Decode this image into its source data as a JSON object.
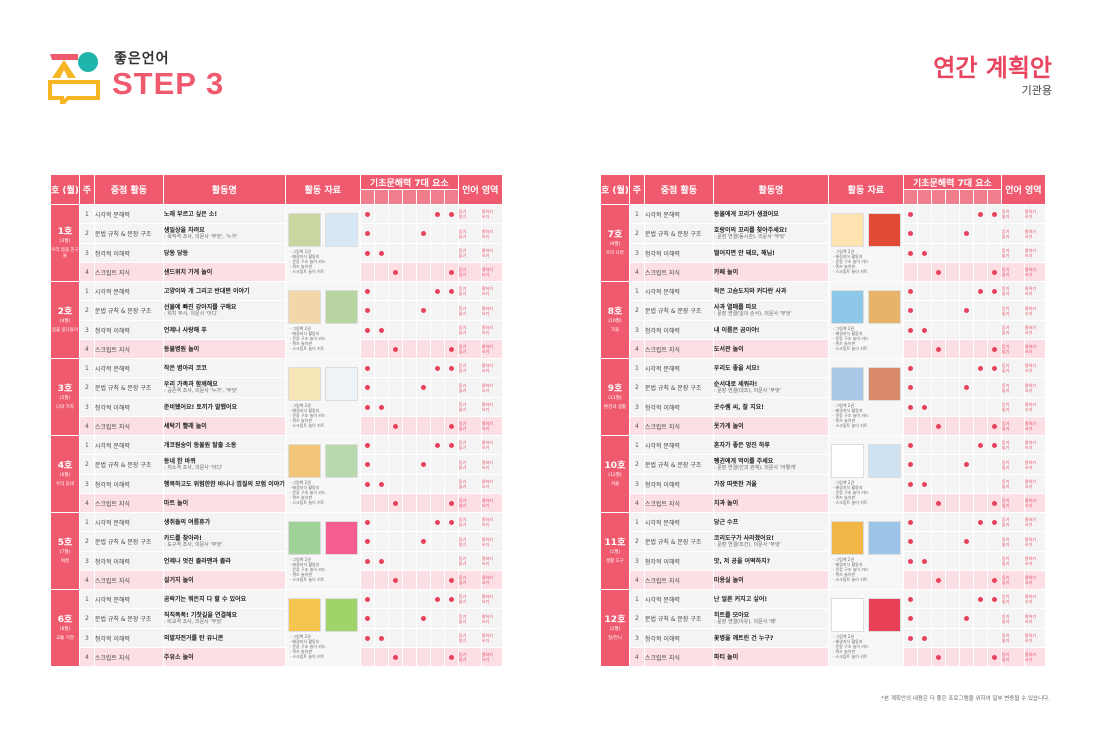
{
  "brand": "좋은언어",
  "step": "STEP 3",
  "title": "연간 계획안",
  "subtitle": "기관용",
  "colors": {
    "accent": "#ef5a6f",
    "dot": "#e8435c",
    "row_highlight": "#fbdfe4",
    "logo_yellow": "#f6b624",
    "logo_teal": "#1fb5ad"
  },
  "headers": {
    "ho": "호 (월)",
    "wk": "주",
    "activity": "중점 활동",
    "name": "활동명",
    "resources": "활동 자료",
    "basic": "기초문해력 7대 요소",
    "lang": "언어 영역"
  },
  "weekly_activities": [
    "시각적 문해력",
    "문법 규칙 & 문장 구조",
    "청각적 이해력",
    "스크립트 지식"
  ],
  "resource_list": [
    "· 그림책 2권",
    "· 배경지식 활동지",
    "· 문장 구조 놀이 카드",
    "· 퀴즈 놀이판",
    "· 스크립트 놀이 키트"
  ],
  "lang_labels": [
    "듣기",
    "말하기",
    "읽기",
    "쓰기"
  ],
  "left": [
    {
      "ho": "1호",
      "mon": "(3월)",
      "theme": "우리 몸을 친구들",
      "rows": [
        {
          "name": "노래 부르고 싶은 소!",
          "sub": ""
        },
        {
          "name": "생일상을 차려요",
          "sub": ": 목적격 조사, 의문사 '무엇', '누가'"
        },
        {
          "name": "당동 당동",
          "sub": ""
        },
        {
          "name": "샌드위치 가게 놀이",
          "sub": ""
        }
      ]
    },
    {
      "ho": "2호",
      "mon": "(4월)",
      "theme": "봄꽃 봄나들이",
      "rows": [
        {
          "name": "고양이와 개 그리고 반대편 이야기",
          "sub": ""
        },
        {
          "name": "선물에 빠진 강아지를 구해요",
          "sub": ": 위치 부사, 의문사 '어디'"
        },
        {
          "name": "언제나 사랑해 푸",
          "sub": ""
        },
        {
          "name": "동물병원 놀이",
          "sub": ""
        }
      ]
    },
    {
      "ho": "3호",
      "mon": "(5월)",
      "theme": "나와 가족",
      "rows": [
        {
          "name": "작은 병아리 코코",
          "sub": ""
        },
        {
          "name": "우리 가족과 함께해요",
          "sub": ": 공존격 조사, 의문사 '누가', '무엇'"
        },
        {
          "name": "준비됐어요! 토끼가 말했어요",
          "sub": ""
        },
        {
          "name": "세탁기 빨래 놀이",
          "sub": ""
        }
      ]
    },
    {
      "ho": "4호",
      "mon": "(6월)",
      "theme": "우리 동네",
      "rows": [
        {
          "name": "개코원숭이 동물원 탈출 소동",
          "sub": ""
        },
        {
          "name": "동네 한 바퀴",
          "sub": ": 처소격 조사, 의문사 '어디'"
        },
        {
          "name": "행복하고도 위험한한 바나나 껍질의 모험 이야기",
          "sub": ""
        },
        {
          "name": "마트 놀이",
          "sub": ""
        }
      ]
    },
    {
      "ho": "5호",
      "mon": "(7월)",
      "theme": "여름",
      "rows": [
        {
          "name": "생쥐들의 여름휴가",
          "sub": ""
        },
        {
          "name": "카드를 찾아라!",
          "sub": ": 도구격 조사, 의문사 '무엇'"
        },
        {
          "name": "언제나 멋진 졸라맨과 졸라",
          "sub": ""
        },
        {
          "name": "설거지 놀이",
          "sub": ""
        }
      ]
    },
    {
      "ho": "6호",
      "mon": "(8월)",
      "theme": "교통 기관",
      "rows": [
        {
          "name": "곰락기는 뭐든지 다 할 수 있어요",
          "sub": ""
        },
        {
          "name": "직직폭폭! 기찻길을 연결해요",
          "sub": ": 비교격 조사, 의문사 '무엇'"
        },
        {
          "name": "외발자전거를 탄 유니콘",
          "sub": ""
        },
        {
          "name": "주유소 놀이",
          "sub": ""
        }
      ]
    }
  ],
  "right": [
    {
      "ho": "7호",
      "mon": "(9월)",
      "theme": "우리 나라",
      "rows": [
        {
          "name": "동물에게 꼬리가 생겼어요",
          "sub": ""
        },
        {
          "name": "호랑이의 꼬리를 찾아주세요!",
          "sub": ": 문장 연결(동시관), 의문사 '무엇'"
        },
        {
          "name": "떨어지면 안 돼요, 해님!",
          "sub": ""
        },
        {
          "name": "카페 놀이",
          "sub": ""
        }
      ]
    },
    {
      "ho": "8호",
      "mon": "(10월)",
      "theme": "가을",
      "rows": [
        {
          "name": "작은 고슴도치와 커다란 사과",
          "sub": ""
        },
        {
          "name": "사과 열매를 따요",
          "sub": ": 문장 연결(일의 순서), 의문사 '무엇'"
        },
        {
          "name": "내 이름은 곰이야!",
          "sub": ""
        },
        {
          "name": "도서관 놀이",
          "sub": ""
        }
      ]
    },
    {
      "ho": "9호",
      "mon": "(11월)",
      "theme": "환경과 생활",
      "rows": [
        {
          "name": "우리도 좋을 서요!",
          "sub": ""
        },
        {
          "name": "순서대로 세워라!",
          "sub": ": 문장 연결(대조), 의문사 '무엇'"
        },
        {
          "name": "곳수쌤 씨, 잘 지요!",
          "sub": ""
        },
        {
          "name": "옷가게 놀이",
          "sub": ""
        }
      ]
    },
    {
      "ho": "10호",
      "mon": "(12월)",
      "theme": "겨울",
      "rows": [
        {
          "name": "혼자가 좋은 멍진 하루",
          "sub": ""
        },
        {
          "name": "펭귄에게 먹이를 주세요",
          "sub": ": 문장 연결(인과 관계), 의문사 '어떻게'"
        },
        {
          "name": "가장 따뜻한 겨울",
          "sub": ""
        },
        {
          "name": "치과 놀이",
          "sub": ""
        }
      ]
    },
    {
      "ho": "11호",
      "mon": "(1월)",
      "theme": "생활 도구",
      "rows": [
        {
          "name": "당근 수프",
          "sub": ""
        },
        {
          "name": "코리도구가 사라졌어요!",
          "sub": ": 문장 연결(조건), 의문사 '무엇'"
        },
        {
          "name": "앗, 저 공을 어떡하지?",
          "sub": ""
        },
        {
          "name": "미용실 놀이",
          "sub": ""
        }
      ]
    },
    {
      "ho": "12호",
      "mon": "(2월)",
      "theme": "형/언니",
      "rows": [
        {
          "name": "난 얼른 커지고 싶어!",
          "sub": ""
        },
        {
          "name": "히트를 모아요",
          "sub": ": 문장 연결(이유), 의문사 '왜'"
        },
        {
          "name": "꽃병을 깨트린 건 누구?",
          "sub": ""
        },
        {
          "name": "파티 놀이",
          "sub": ""
        }
      ]
    }
  ],
  "footnote": "*본 계획안의 내용은 더 좋은 프로그램을 위하여 일부 변동될 수 있습니다."
}
